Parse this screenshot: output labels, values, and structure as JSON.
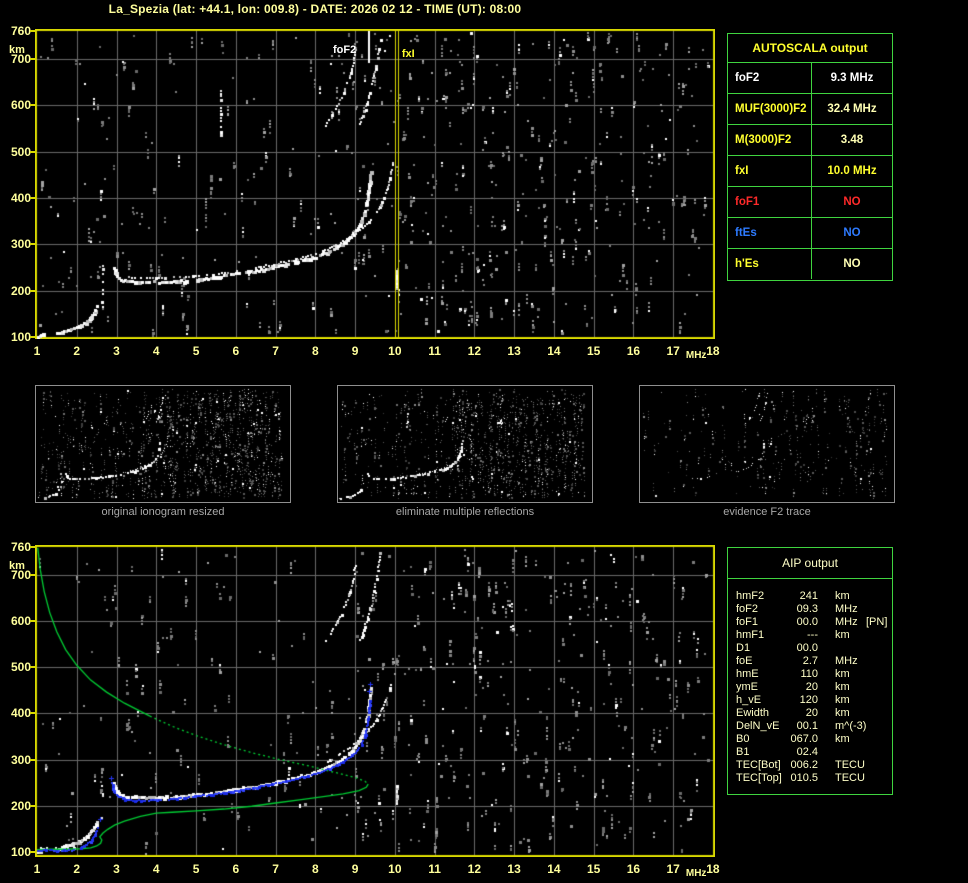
{
  "title": "La_Spezia (lat: +44.1, lon: 009.8) - DATE: 2026 02 12 - TIME (UT): 08:00",
  "colors": {
    "white": "#ffffff",
    "yellow": "#ffff2e",
    "pale_yellow": "#ffffb4",
    "red": "#ff2a2a",
    "blue": "#2e7bff",
    "table_border": "#3fd43f",
    "frame_yellow": "#d9d900",
    "axis_label": "#ffff9c",
    "grid": "#6a6a6a",
    "green_profile": "#00cd33",
    "blue_fit": "#2334f0",
    "aip_text": "#ffffc8",
    "caption_gray": "#a8a8a8",
    "thumb_border": "#8f8f8f"
  },
  "autoscala": {
    "header": "AUTOSCALA output",
    "rows": [
      {
        "label": "foF2",
        "value": "9.3 MHz",
        "label_color": "white",
        "value_color": "white"
      },
      {
        "label": "MUF(3000)F2",
        "value": "32.4 MHz",
        "label_color": "yellow",
        "value_color": "pale_yellow"
      },
      {
        "label": "M(3000)F2",
        "value": "3.48",
        "label_color": "yellow",
        "value_color": "pale_yellow"
      },
      {
        "label": "fxI",
        "value": "10.0 MHz",
        "label_color": "yellow",
        "value_color": "yellow"
      },
      {
        "label": "foF1",
        "value": "NO",
        "label_color": "red",
        "value_color": "red"
      },
      {
        "label": "ftEs",
        "value": "NO",
        "label_color": "blue",
        "value_color": "blue"
      },
      {
        "label": "h'Es",
        "value": "NO",
        "label_color": "yellow",
        "value_color": "pale_yellow"
      }
    ]
  },
  "aip": {
    "header": "AIP output",
    "rows": [
      {
        "name": "hmF2",
        "value": "241",
        "unit": "km",
        "note": ""
      },
      {
        "name": "foF2",
        "value": "09.3",
        "unit": "MHz",
        "note": ""
      },
      {
        "name": "foF1",
        "value": "00.0",
        "unit": "MHz",
        "note": "[PN]"
      },
      {
        "name": "hmF1",
        "value": "---",
        "unit": "km",
        "note": ""
      },
      {
        "name": "D1",
        "value": "00.0",
        "unit": "",
        "note": ""
      },
      {
        "name": "foE",
        "value": "2.7",
        "unit": "MHz",
        "note": ""
      },
      {
        "name": "hmE",
        "value": "110",
        "unit": "km",
        "note": ""
      },
      {
        "name": "ymE",
        "value": "20",
        "unit": "km",
        "note": ""
      },
      {
        "name": "h_vE",
        "value": "120",
        "unit": "km",
        "note": ""
      },
      {
        "name": "Ewidth",
        "value": "20",
        "unit": "km",
        "note": ""
      },
      {
        "name": "DelN_vE",
        "value": "00.1",
        "unit": "m^(-3)",
        "note": ""
      },
      {
        "name": "B0",
        "value": "067.0",
        "unit": "km",
        "note": ""
      },
      {
        "name": "B1",
        "value": "02.4",
        "unit": "",
        "note": ""
      },
      {
        "name": "TEC[Bot]",
        "value": "006.2",
        "unit": "TECU",
        "note": ""
      },
      {
        "name": "TEC[Top]",
        "value": "010.5",
        "unit": "TECU",
        "note": ""
      }
    ]
  },
  "thumbnails": [
    {
      "caption": "original ionogram resized"
    },
    {
      "caption": "eliminate multiple reflections"
    },
    {
      "caption": "evidence F2 trace"
    }
  ],
  "chart_data": [
    {
      "id": "main_ionogram",
      "type": "scatter",
      "title": "scaled ionogram with AUTOSCALA markers",
      "xlabel": "MHz",
      "ylabel": "km",
      "xlim": [
        1,
        18
      ],
      "ylim": [
        100,
        760
      ],
      "x_ticks": [
        1,
        2,
        3,
        4,
        5,
        6,
        7,
        8,
        9,
        10,
        11,
        12,
        13,
        14,
        15,
        16,
        17,
        18
      ],
      "y_ticks": [
        760,
        700,
        600,
        500,
        400,
        300,
        200,
        100
      ],
      "grid": true,
      "annotations": [
        {
          "text": "foF2",
          "frequency_mhz": 9.3,
          "color": "white"
        },
        {
          "text": "fxI",
          "frequency_mhz": 10.0,
          "color": "yellow"
        }
      ],
      "scaled_values": {
        "foF2_MHz": 9.3,
        "fxI_MHz": 10.0
      },
      "traces": {
        "E_layer": [
          [
            1.5,
            110
          ],
          [
            1.62,
            112
          ],
          [
            1.76,
            115
          ],
          [
            1.9,
            119
          ],
          [
            2.04,
            124
          ],
          [
            2.17,
            130
          ],
          [
            2.28,
            138
          ],
          [
            2.38,
            148
          ],
          [
            2.46,
            159
          ],
          [
            2.52,
            170
          ]
        ],
        "E_cusp": [
          [
            2.63,
            176
          ],
          [
            2.63,
            258
          ]
        ],
        "F2_ordinary": [
          [
            2.92,
            250
          ],
          [
            2.97,
            238
          ],
          [
            3.05,
            228
          ],
          [
            3.2,
            222
          ],
          [
            3.5,
            220
          ],
          [
            4.0,
            219
          ],
          [
            4.5,
            221
          ],
          [
            5.0,
            225
          ],
          [
            5.5,
            230
          ],
          [
            6.0,
            237
          ],
          [
            6.5,
            244
          ],
          [
            7.0,
            252
          ],
          [
            7.5,
            262
          ],
          [
            8.0,
            274
          ],
          [
            8.35,
            287
          ],
          [
            8.65,
            302
          ],
          [
            8.9,
            320
          ],
          [
            9.1,
            342
          ],
          [
            9.22,
            368
          ],
          [
            9.3,
            398
          ],
          [
            9.35,
            430
          ],
          [
            9.38,
            458
          ]
        ],
        "F2_ordinary_upper": [
          [
            3.0,
            231
          ],
          [
            3.6,
            228
          ],
          [
            4.2,
            228
          ],
          [
            4.9,
            232
          ],
          [
            5.5,
            237
          ],
          [
            6.1,
            243
          ]
        ],
        "F2_extraordinary": [
          [
            6.5,
            250
          ],
          [
            7.0,
            258
          ],
          [
            7.5,
            268
          ],
          [
            8.0,
            280
          ],
          [
            8.4,
            294
          ],
          [
            8.8,
            312
          ],
          [
            9.1,
            330
          ],
          [
            9.35,
            350
          ],
          [
            9.55,
            372
          ],
          [
            9.7,
            396
          ],
          [
            9.82,
            424
          ],
          [
            9.9,
            455
          ],
          [
            9.95,
            482
          ]
        ],
        "second_hop_inner": [
          [
            8.25,
            558
          ],
          [
            8.4,
            578
          ],
          [
            8.55,
            600
          ],
          [
            8.7,
            626
          ],
          [
            8.85,
            658
          ],
          [
            8.95,
            692
          ],
          [
            9.02,
            726
          ]
        ],
        "second_hop_outer": [
          [
            9.12,
            560
          ],
          [
            9.25,
            592
          ],
          [
            9.38,
            628
          ],
          [
            9.48,
            668
          ],
          [
            9.57,
            710
          ],
          [
            9.63,
            748
          ]
        ],
        "second_hop_E": [
          [
            5.62,
            528
          ],
          [
            5.62,
            635
          ]
        ],
        "x_tick_burst": [
          [
            10.05,
            205
          ],
          [
            10.05,
            245
          ]
        ],
        "corner_echo": [
          [
            1.02,
            101
          ],
          [
            1.1,
            105
          ],
          [
            1.18,
            110
          ]
        ]
      }
    },
    {
      "id": "profile_ionogram",
      "type": "scatter",
      "title": "ionogram with AIP inverted electron density profile",
      "xlabel": "MHz",
      "ylabel": "km",
      "xlim": [
        1,
        18
      ],
      "ylim": [
        100,
        760
      ],
      "x_ticks": [
        1,
        2,
        3,
        4,
        5,
        6,
        7,
        8,
        9,
        10,
        11,
        12,
        13,
        14,
        15,
        16,
        17,
        18
      ],
      "y_ticks": [
        760,
        700,
        600,
        500,
        400,
        300,
        200,
        100
      ],
      "grid": true,
      "traces": {
        "E_layer": [
          [
            1.5,
            110
          ],
          [
            1.62,
            112
          ],
          [
            1.76,
            115
          ],
          [
            1.9,
            119
          ],
          [
            2.04,
            124
          ],
          [
            2.17,
            130
          ],
          [
            2.28,
            138
          ],
          [
            2.38,
            148
          ],
          [
            2.46,
            159
          ],
          [
            2.52,
            170
          ]
        ],
        "E_cusp": [
          [
            2.63,
            176
          ],
          [
            2.63,
            250
          ]
        ],
        "base_line": [
          [
            1.1,
            108
          ],
          [
            1.4,
            108
          ],
          [
            1.7,
            109
          ],
          [
            1.95,
            110
          ]
        ],
        "F2_ordinary": [
          [
            2.92,
            250
          ],
          [
            2.97,
            238
          ],
          [
            3.05,
            228
          ],
          [
            3.2,
            222
          ],
          [
            3.5,
            220
          ],
          [
            4.0,
            219
          ],
          [
            4.5,
            221
          ],
          [
            5.0,
            225
          ],
          [
            5.5,
            230
          ],
          [
            6.0,
            237
          ],
          [
            6.5,
            244
          ],
          [
            7.0,
            252
          ],
          [
            7.5,
            262
          ],
          [
            8.0,
            274
          ],
          [
            8.35,
            287
          ],
          [
            8.65,
            302
          ],
          [
            8.9,
            320
          ],
          [
            9.1,
            342
          ],
          [
            9.22,
            368
          ],
          [
            9.3,
            398
          ],
          [
            9.35,
            430
          ],
          [
            9.38,
            458
          ]
        ],
        "F2_extraordinary": [
          [
            8.3,
            296
          ],
          [
            8.6,
            312
          ],
          [
            8.85,
            328
          ],
          [
            9.1,
            346
          ],
          [
            9.35,
            366
          ],
          [
            9.55,
            390
          ],
          [
            9.7,
            414
          ],
          [
            9.82,
            440
          ],
          [
            9.9,
            466
          ]
        ],
        "second_hop_inner": [
          [
            8.25,
            558
          ],
          [
            8.4,
            578
          ],
          [
            8.55,
            600
          ],
          [
            8.7,
            626
          ],
          [
            8.85,
            658
          ],
          [
            8.95,
            692
          ],
          [
            9.02,
            726
          ]
        ],
        "second_hop_outer": [
          [
            9.12,
            560
          ],
          [
            9.25,
            592
          ],
          [
            9.38,
            628
          ],
          [
            9.48,
            668
          ],
          [
            9.57,
            710
          ],
          [
            9.63,
            748
          ]
        ],
        "x_tick_burst": [
          [
            10.05,
            205
          ],
          [
            10.05,
            245
          ]
        ],
        "corner_echo": [
          [
            1.02,
            101
          ],
          [
            1.1,
            105
          ],
          [
            1.18,
            110
          ]
        ]
      },
      "profile_green": {
        "topside_solid": [
          [
            1.02,
            758
          ],
          [
            1.08,
            712
          ],
          [
            1.18,
            664
          ],
          [
            1.32,
            618
          ],
          [
            1.5,
            576
          ],
          [
            1.72,
            538
          ],
          [
            2.0,
            504
          ],
          [
            2.35,
            472
          ],
          [
            2.75,
            446
          ],
          [
            3.2,
            422
          ],
          [
            3.84,
            394
          ]
        ],
        "topside_dotted": [
          [
            3.84,
            394
          ],
          [
            4.4,
            372
          ],
          [
            5.0,
            352
          ],
          [
            5.7,
            332
          ],
          [
            6.4,
            315
          ],
          [
            7.1,
            300
          ],
          [
            7.8,
            287
          ],
          [
            8.5,
            272
          ],
          [
            9.0,
            261
          ],
          [
            9.25,
            253
          ],
          [
            9.33,
            247
          ]
        ],
        "bottomside": [
          [
            9.33,
            247
          ],
          [
            9.28,
            240
          ],
          [
            9.1,
            233
          ],
          [
            8.7,
            226
          ],
          [
            8.2,
            220
          ],
          [
            7.6,
            213
          ],
          [
            7.0,
            206
          ],
          [
            6.4,
            199
          ],
          [
            5.7,
            193
          ],
          [
            5.0,
            189
          ],
          [
            4.4,
            186
          ],
          [
            4.0,
            184
          ],
          [
            3.6,
            177
          ],
          [
            3.2,
            167
          ],
          [
            2.95,
            158
          ],
          [
            2.78,
            149
          ],
          [
            2.66,
            141
          ],
          [
            2.58,
            133
          ],
          [
            2.63,
            126
          ],
          [
            2.6,
            119
          ],
          [
            2.5,
            113
          ],
          [
            2.35,
            109
          ],
          [
            2.1,
            107
          ],
          [
            1.7,
            106
          ],
          [
            1.3,
            106
          ],
          [
            1.0,
            105
          ]
        ],
        "peak": {
          "foF2_MHz": 9.3,
          "hmF2_km": 241
        }
      },
      "fitted_blue": {
        "base_line": [
          [
            1.0,
            104
          ],
          [
            1.25,
            104
          ],
          [
            1.5,
            104
          ],
          [
            1.75,
            104
          ],
          [
            1.95,
            105
          ]
        ],
        "E_rise": [
          [
            2.0,
            107
          ],
          [
            2.12,
            111
          ],
          [
            2.24,
            117
          ],
          [
            2.34,
            124
          ],
          [
            2.42,
            133
          ],
          [
            2.48,
            143
          ],
          [
            2.52,
            153
          ]
        ],
        "F_trace": [
          [
            2.88,
            250
          ],
          [
            2.9,
            238
          ],
          [
            2.95,
            228
          ],
          [
            3.05,
            220
          ],
          [
            3.2,
            215
          ],
          [
            3.45,
            212
          ],
          [
            3.8,
            212
          ],
          [
            4.2,
            214
          ],
          [
            4.7,
            218
          ],
          [
            5.2,
            223
          ],
          [
            5.7,
            229
          ],
          [
            6.2,
            236
          ],
          [
            6.7,
            244
          ],
          [
            7.2,
            253
          ],
          [
            7.7,
            263
          ],
          [
            8.1,
            273
          ],
          [
            8.45,
            285
          ],
          [
            8.75,
            299
          ],
          [
            9.0,
            315
          ],
          [
            9.15,
            333
          ],
          [
            9.25,
            355
          ],
          [
            9.31,
            380
          ],
          [
            9.34,
            405
          ],
          [
            9.36,
            428
          ]
        ],
        "plus_marks": [
          [
            9.37,
            447
          ],
          [
            9.39,
            463
          ],
          [
            2.6,
            170
          ],
          [
            2.88,
            258
          ]
        ]
      }
    }
  ]
}
